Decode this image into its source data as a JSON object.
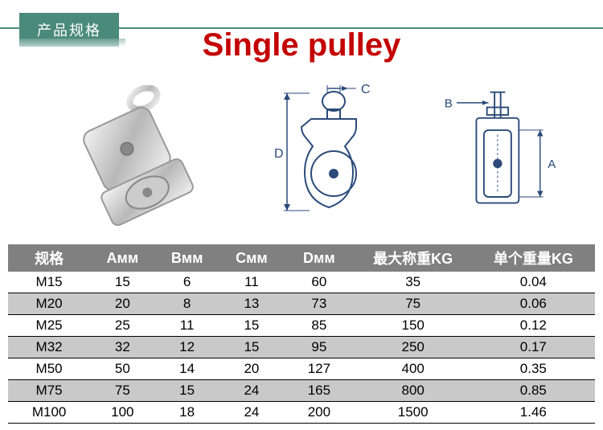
{
  "header": {
    "tab_label": "产品规格",
    "title": "Single pulley",
    "title_color": "#c40000",
    "rule_color": "#4a8a7a",
    "tab_bg": "#4a8a7a"
  },
  "diagrams": {
    "stroke": "#2b4a7a",
    "photo_bg": "#d0d0d0",
    "dim_D_label": "D",
    "dim_C_label": "C",
    "dim_A_label": "A",
    "dim_B_label": "B"
  },
  "table": {
    "columns": [
      "规格",
      "Aмм",
      "Bмм",
      "Cмм",
      "Dмм",
      "最大称重KG",
      "单个重量KG"
    ],
    "header_bg": "#808080",
    "header_fg": "#ffffff",
    "stripe_bg": "#c9c9c9",
    "border_color": "#000000",
    "rows": [
      [
        "M15",
        "15",
        "6",
        "11",
        "60",
        "35",
        "0.04"
      ],
      [
        "M20",
        "20",
        "8",
        "13",
        "73",
        "75",
        "0.06"
      ],
      [
        "M25",
        "25",
        "11",
        "15",
        "85",
        "150",
        "0.12"
      ],
      [
        "M32",
        "32",
        "12",
        "15",
        "95",
        "250",
        "0.17"
      ],
      [
        "M50",
        "50",
        "14",
        "20",
        "127",
        "400",
        "0.35"
      ],
      [
        "M75",
        "75",
        "15",
        "24",
        "165",
        "800",
        "0.85"
      ],
      [
        "M100",
        "100",
        "18",
        "24",
        "200",
        "1500",
        "1.46"
      ]
    ],
    "stripe_pattern": [
      false,
      true,
      false,
      true,
      false,
      true,
      false
    ]
  }
}
